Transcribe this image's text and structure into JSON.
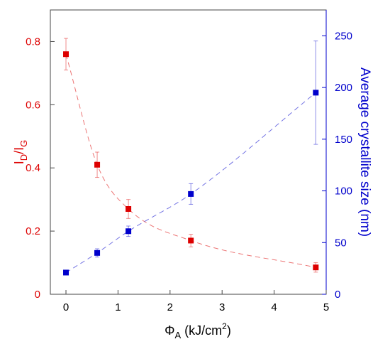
{
  "chart_data": {
    "type": "scatter",
    "x": [
      0,
      0.6,
      1.2,
      2.4,
      4.8
    ],
    "xlim": [
      -0.3,
      5.0
    ],
    "xticks": [
      0,
      1,
      2,
      3,
      4,
      5
    ],
    "xlabel": {
      "main": "Φ",
      "sub": "A",
      "unit_pre": " (kJ/cm",
      "unit_sup": "2",
      "unit_post": ")"
    },
    "ylabel_left": {
      "p1": "I",
      "s1": "D",
      "p2": "/I",
      "s2": "G"
    },
    "ylabel_right": "Average crystallite size (nm)",
    "ylim_left": [
      0,
      0.9
    ],
    "yticks_left": [
      0,
      0.2,
      0.4,
      0.6,
      0.8
    ],
    "ylim_right": [
      0,
      275
    ],
    "yticks_right": [
      0,
      50,
      100,
      150,
      200,
      250
    ],
    "grid": false,
    "series": [
      {
        "axis": "left",
        "color": "#dd0000",
        "marker": "square",
        "values": [
          0.76,
          0.41,
          0.27,
          0.17,
          0.085
        ],
        "errors": [
          0.05,
          0.04,
          0.03,
          0.02,
          0.015
        ],
        "fit": "dashed decay curve"
      },
      {
        "axis": "right",
        "color": "#0000cc",
        "marker": "square",
        "values": [
          21,
          40,
          61,
          97,
          195
        ],
        "errors": [
          2,
          4,
          5,
          10,
          50
        ],
        "fit": "dashed growth curve"
      }
    ]
  }
}
